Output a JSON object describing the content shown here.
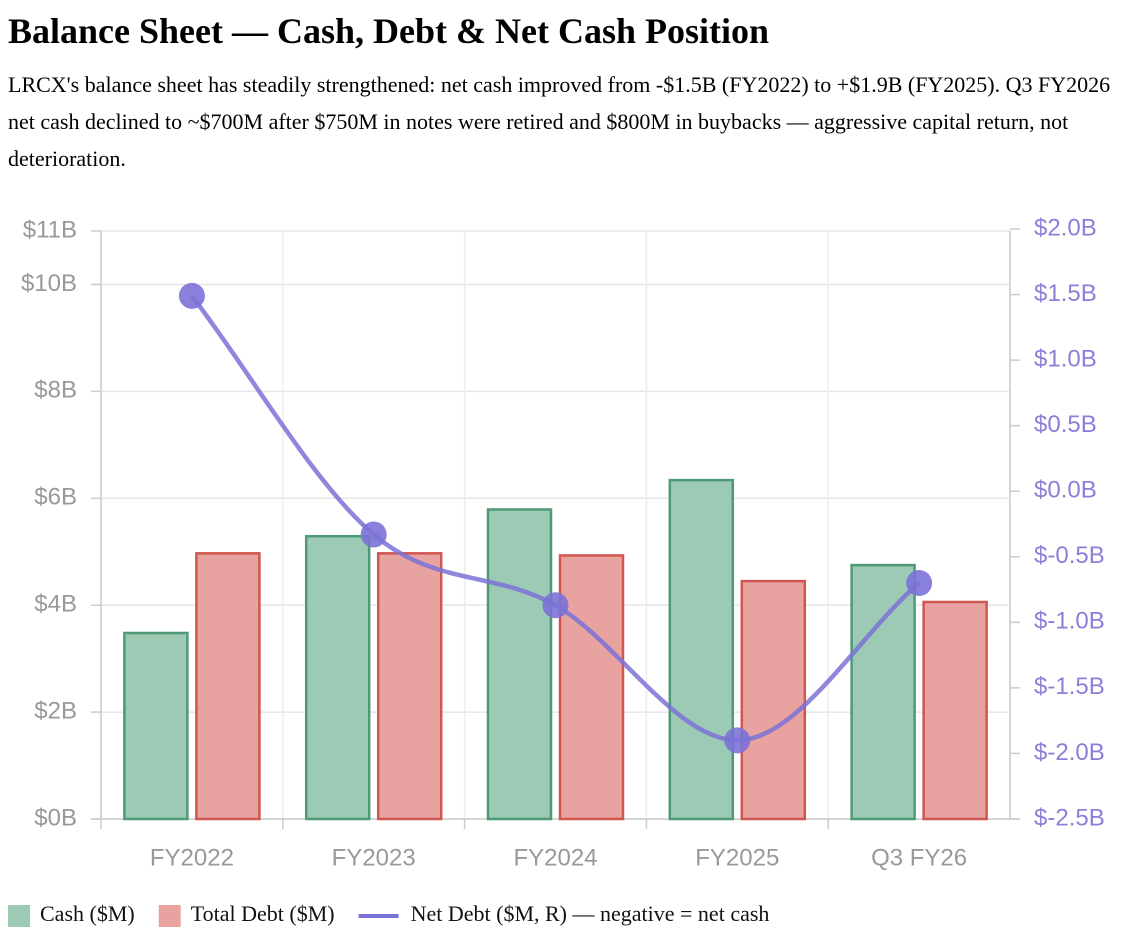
{
  "chart_data": {
    "type": "bar",
    "title": "Balance Sheet — Cash, Debt & Net Cash Position",
    "subtitle": "LRCX's balance sheet has steadily strengthened: net cash improved from -$1.5B (FY2022) to +$1.9B (FY2025). Q3 FY2026 net cash declined to ~$700M after $750M in notes were retired and $800M in buybacks — aggressive capital return, not deterioration.",
    "categories": [
      "FY2022",
      "FY2023",
      "FY2024",
      "FY2025",
      "Q3 FY26"
    ],
    "series": [
      {
        "name": "Cash ($M)",
        "color": "#9ccab5",
        "edgecolor": "#4e9a76",
        "values": [
          3480,
          5290,
          5790,
          6340,
          4750
        ]
      },
      {
        "name": "Total Debt ($M)",
        "color": "#e8a3a0",
        "edgecolor": "#d0574f",
        "values": [
          4970,
          4970,
          4930,
          4450,
          4060
        ]
      },
      {
        "name": "Net Debt ($M, R) — negative = net cash",
        "color": "#7b72d6",
        "type": "line",
        "axis": "y2",
        "values": [
          1490,
          -330,
          -870,
          -1900,
          -700
        ]
      }
    ],
    "ylim": [
      0,
      11000
    ],
    "yticks": [
      {
        "value": 0,
        "label": "$0B"
      },
      {
        "value": 2000,
        "label": "$2B"
      },
      {
        "value": 4000,
        "label": "$4B"
      },
      {
        "value": 6000,
        "label": "$6B"
      },
      {
        "value": 8000,
        "label": "$8B"
      },
      {
        "value": 10000,
        "label": "$10B"
      },
      {
        "value": 11000,
        "label": "$11B"
      }
    ],
    "y2lim": [
      -2500,
      2000
    ],
    "y2ticks": [
      {
        "value": -2500,
        "label": "$-2.5B"
      },
      {
        "value": -2000,
        "label": "$-2.0B"
      },
      {
        "value": -1500,
        "label": "$-1.5B"
      },
      {
        "value": -1000,
        "label": "$-1.0B"
      },
      {
        "value": -500,
        "label": "$-0.5B"
      },
      {
        "value": 0,
        "label": "$0.0B"
      },
      {
        "value": 500,
        "label": "$0.5B"
      },
      {
        "value": 1000,
        "label": "$1.0B"
      },
      {
        "value": 1500,
        "label": "$1.5B"
      },
      {
        "value": 2000,
        "label": "$2.0B"
      }
    ],
    "grid": true
  }
}
